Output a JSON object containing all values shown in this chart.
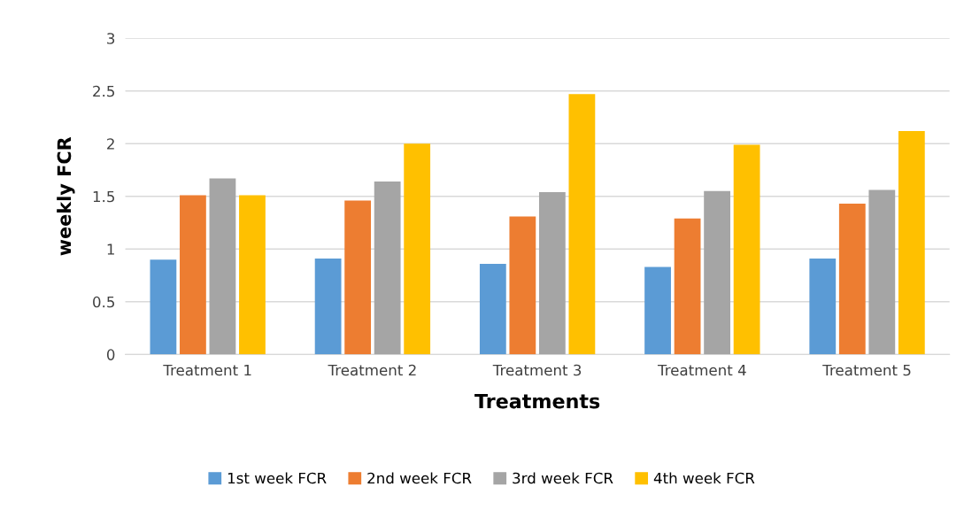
{
  "chart_data": {
    "type": "bar",
    "xlabel": "Treatments",
    "ylabel": "weekly FCR",
    "categories": [
      "Treatment 1",
      "Treatment 2",
      "Treatment 3",
      "Treatment 4",
      "Treatment 5"
    ],
    "series": [
      {
        "name": "1st week FCR",
        "color": "#5b9bd5",
        "values": [
          0.9,
          0.91,
          0.86,
          0.83,
          0.91
        ]
      },
      {
        "name": "2nd week FCR",
        "color": "#ed7d31",
        "values": [
          1.51,
          1.46,
          1.31,
          1.29,
          1.43
        ]
      },
      {
        "name": "3rd week FCR",
        "color": "#a5a5a5",
        "values": [
          1.67,
          1.64,
          1.54,
          1.55,
          1.56
        ]
      },
      {
        "name": "4th week FCR",
        "color": "#ffc000",
        "values": [
          1.51,
          2.0,
          2.47,
          1.99,
          2.12
        ]
      }
    ],
    "ylim": [
      0,
      3
    ],
    "yticks": [
      0,
      0.5,
      1,
      1.5,
      2,
      2.5,
      3
    ],
    "grid": "y",
    "legend": "bottom"
  }
}
